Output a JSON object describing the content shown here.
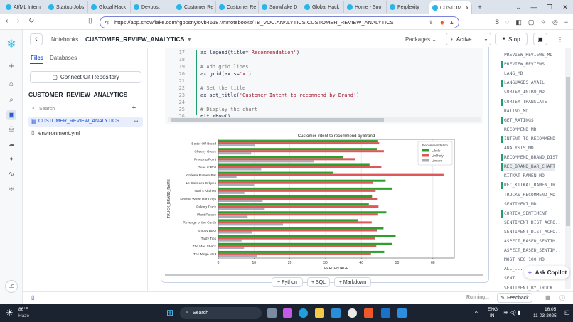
{
  "browser": {
    "tabs": [
      {
        "label": "AI/ML Intern"
      },
      {
        "label": "Startup Jobs"
      },
      {
        "label": "Global Hack"
      },
      {
        "label": "Devpost"
      },
      {
        "label": "Customer Re"
      },
      {
        "label": "Customer Re"
      },
      {
        "label": "Snowflake D"
      },
      {
        "label": "Global Hack"
      },
      {
        "label": "Home - Sno"
      },
      {
        "label": "Perplexity"
      },
      {
        "label": "CUSTOM"
      }
    ],
    "new_tab": "+",
    "close_tab": "x",
    "url": "https://app.snowflake.com/rgppsny/ovb46187/#/notebooks/TB_VOC.ANALYTICS.CUSTOMER_REVIEW_ANALYTICS"
  },
  "header": {
    "back": "‹",
    "breadcrumb": "Notebooks",
    "title": "CUSTOMER_REVIEW_ANALYTICS",
    "packages": "Packages",
    "active": "Active",
    "stop": "Stop"
  },
  "files_panel": {
    "tabs": [
      "Files",
      "Databases"
    ],
    "git_button": "Connect Git Repository",
    "project": "CUSTOMER_REVIEW_ANALYTICS",
    "search_placeholder": "Search",
    "add": "+",
    "files": [
      {
        "name": "CUSTOMER_REVIEW_ANALYTICS....",
        "more": "•••"
      },
      {
        "name": "environment.yml"
      }
    ]
  },
  "rail": {
    "user": "LS"
  },
  "code": {
    "lines": [
      {
        "n": "17",
        "text": "ax.legend(title='Recommendation')"
      },
      {
        "n": "18",
        "text": ""
      },
      {
        "n": "19",
        "text": "# Add grid lines"
      },
      {
        "n": "20",
        "text": "ax.grid(axis='x')"
      },
      {
        "n": "21",
        "text": ""
      },
      {
        "n": "22",
        "text": "# Set the title"
      },
      {
        "n": "23",
        "text": "ax.set_title('Customer Intent to recommend by Brand')"
      },
      {
        "n": "24",
        "text": ""
      },
      {
        "n": "25",
        "text": "# Display the chart"
      },
      {
        "n": "26",
        "text": "plt.show()"
      }
    ]
  },
  "chart_data": {
    "type": "bar",
    "orientation": "horizontal",
    "title": "Customer Intent to recommend by Brand",
    "xlabel": "PERCENTAGE",
    "ylabel": "TRUCK_BRAND_NAME",
    "xlim": [
      0,
      66
    ],
    "xticks": [
      0,
      10,
      20,
      30,
      40,
      50,
      60
    ],
    "grid": "x",
    "legend": {
      "title": "Recommendation",
      "placement": "top-right"
    },
    "categories": [
      "Better Off Bread",
      "Cheeky Greek",
      "Freezing Point",
      "Guac n' Roll",
      "Kitakata Ramen Bar",
      "Le Coin des Crêpes",
      "Nani's Kitchen",
      "Not the Wurst Hot Dogs",
      "Peking Truck",
      "Plant Palace",
      "Revenge of the Curds",
      "Smoky BBQ",
      "Tasty Tibs",
      "The Mac Shack",
      "The Mega Melt"
    ],
    "series": [
      {
        "name": "Likely",
        "color": "#2ca02c",
        "values": [
          44.7,
          44.5,
          35,
          42.3,
          32,
          46.8,
          48.6,
          43,
          42.1,
          47,
          39,
          46.2,
          49.6,
          48.5,
          46.4
        ]
      },
      {
        "name": "Unlikely",
        "color": "#e15759",
        "values": [
          45,
          46.3,
          38.3,
          45.6,
          63,
          43.2,
          44,
          44.6,
          44.8,
          44.7,
          42.9,
          44.4,
          43.8,
          44.2,
          42.7
        ]
      },
      {
        "name": "Unsure",
        "color": "#a9acb8",
        "values": [
          10.3,
          9.2,
          26.7,
          12,
          5.1,
          10,
          7.3,
          12.4,
          13,
          8.2,
          18.1,
          9.4,
          6.5,
          7.2,
          10.9
        ]
      }
    ]
  },
  "add_cell": {
    "python": "+ Python",
    "sql": "+ SQL",
    "markdown": "+ Markdown"
  },
  "outline": {
    "items": [
      {
        "label": "PREVIEW_REVIEWS_MD",
        "run": false
      },
      {
        "label": "PREVIEW_REVIEWS",
        "run": true
      },
      {
        "label": "LANG_MD",
        "run": false
      },
      {
        "label": "LANGUAGES_AVAIL",
        "run": true
      },
      {
        "label": "CORTEX_INTRO_MD",
        "run": false
      },
      {
        "label": "CORTEX_TRANSLATE",
        "run": true
      },
      {
        "label": "RATING_MD",
        "run": false
      },
      {
        "label": "GET_RATINGS",
        "run": true
      },
      {
        "label": "RECOMMEND_MD",
        "run": false
      },
      {
        "label": "INTENT_TO_RECOMMEND",
        "run": true
      },
      {
        "label": "ANALYSIS_MD",
        "run": false
      },
      {
        "label": "RECOMMEND_BRAND_DIST",
        "run": true
      },
      {
        "label": "REC_BRAND_BAR_CHART",
        "run": true,
        "selected": true
      },
      {
        "label": "KITKAT_RAMEN_MD",
        "run": false
      },
      {
        "label": "REC_KITKAT_RAMEN_TR...",
        "run": true
      },
      {
        "label": "TRUCKS_RECOMMEND_MD",
        "run": false
      },
      {
        "label": "SENTIMENT_MD",
        "run": false
      },
      {
        "label": "CORTEX_SENTIMENT",
        "run": true
      },
      {
        "label": "SENTIMENT_DIST_ACRO...",
        "run": false
      },
      {
        "label": "SENTIMENT_DIST_ACRO...",
        "run": false
      },
      {
        "label": "ASPECT_BASED_SENTIM...",
        "run": false
      },
      {
        "label": "ASPECT_BASED_SENTIM...",
        "run": false
      },
      {
        "label": "MOST_NEG_100_MD",
        "run": false
      },
      {
        "label": "ALL_...",
        "run": false
      },
      {
        "label": "SENT...",
        "run": false
      },
      {
        "label": "SENTIMENT_BY_TRUCK",
        "run": false
      }
    ],
    "copilot": "Ask Copilot"
  },
  "status": {
    "running": "Running...",
    "feedback": "Feedback"
  },
  "taskbar": {
    "temp": "86°F",
    "weather": "Haze",
    "search": "Search",
    "lang1": "ENG",
    "lang2": "IN",
    "time": "16:05",
    "date": "11-03-2025"
  }
}
